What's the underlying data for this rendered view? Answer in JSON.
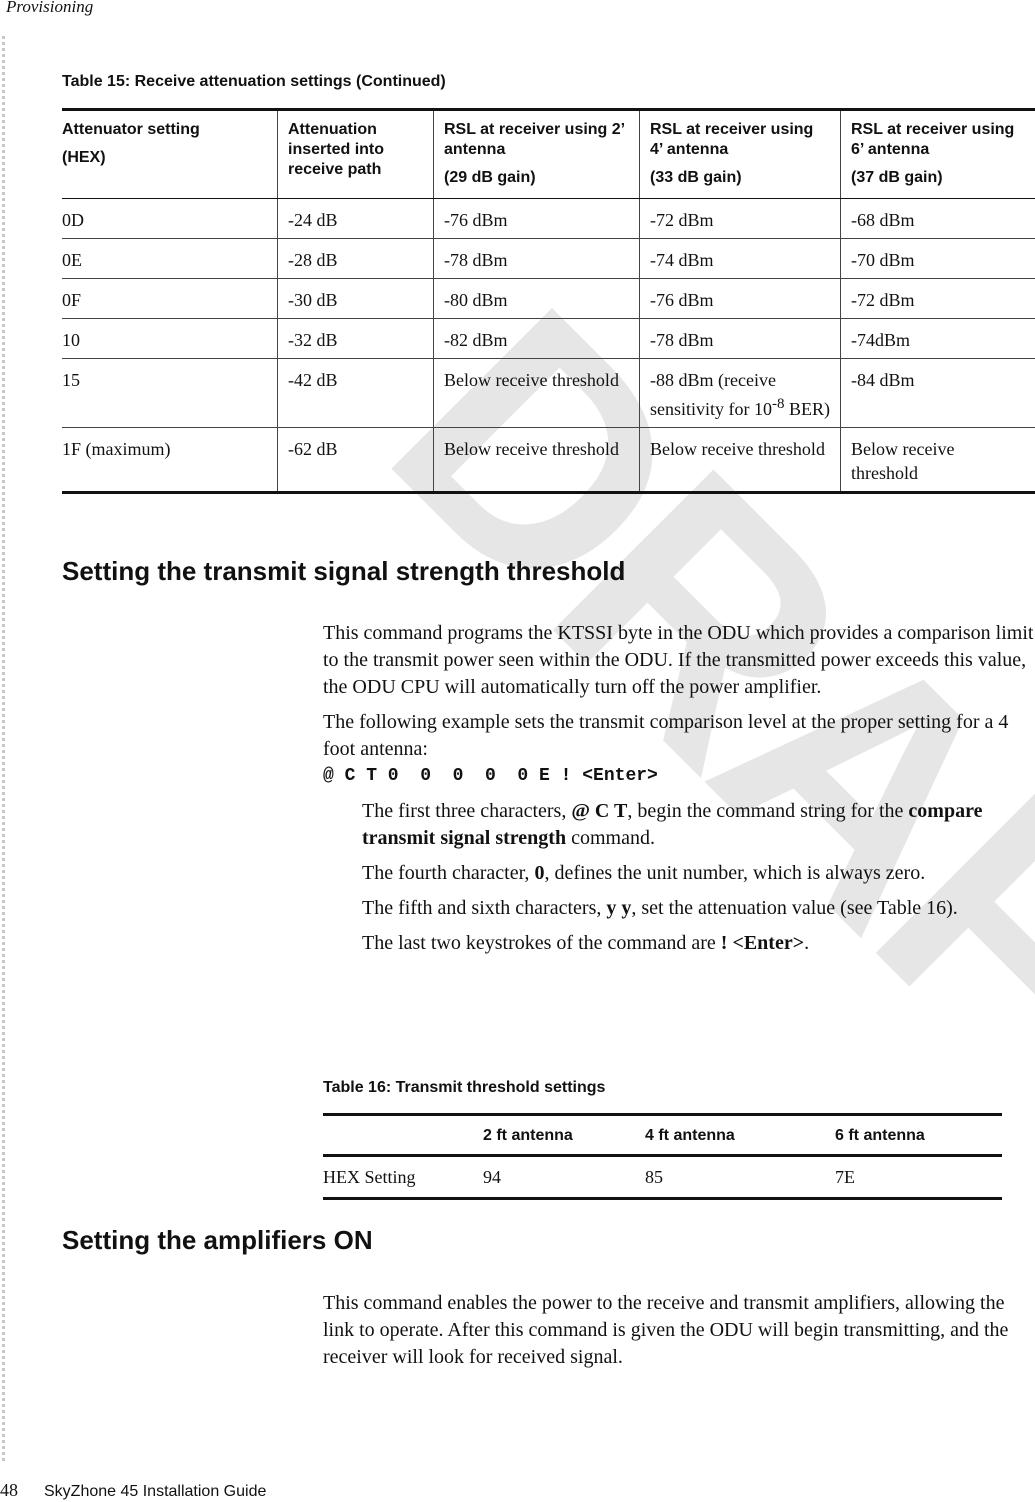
{
  "header": {
    "section": "Provisioning"
  },
  "watermark": "DRAFT",
  "table15": {
    "caption": "Table 15:  Receive attenuation settings (Continued)",
    "headers": [
      [
        "Attenuator setting",
        "(HEX)"
      ],
      [
        "Attenuation inserted into receive path"
      ],
      [
        "RSL at receiver using 2’ antenna",
        "(29 dB gain)"
      ],
      [
        "RSL at receiver using 4’ antenna",
        "(33 dB gain)"
      ],
      [
        "RSL at receiver using 6’ antenna",
        "(37 dB gain)"
      ]
    ],
    "rows": [
      [
        "0D",
        "-24 dB",
        "-76 dBm",
        "-72 dBm",
        "-68 dBm"
      ],
      [
        "0E",
        "-28 dB",
        "-78 dBm",
        "-74 dBm",
        "-70 dBm"
      ],
      [
        "0F",
        "-30 dB",
        "-80 dBm",
        "-76 dBm",
        "-72 dBm"
      ],
      [
        "10",
        "-32 dB",
        "-82 dBm",
        "-78 dBm",
        "-74dBm"
      ],
      [
        "15",
        "-42 dB",
        "Below receive threshold",
        "-88 dBm (receive sensitivity for 10",
        "-84 dBm"
      ],
      [
        "1F (maximum)",
        "-62 dB",
        "Below receive threshold",
        "Below receive threshold",
        "Below receive threshold"
      ]
    ],
    "row15_sup": "-8",
    "row15_tail": " BER)"
  },
  "section1": {
    "title": "Setting the transmit signal strength threshold",
    "p1": "This command programs the KTSSI byte in the ODU which provides a comparison limit to the transmit power seen within the ODU. If the transmitted power exceeds this value, the ODU CPU will automatically turn off the power amplifier.",
    "p2": "The following example sets the transmit comparison level at the proper setting for a 4 foot antenna:",
    "command": "@ C T 0  0  0  0  0 E ! <Enter>",
    "b1": [
      "The first three characters, ",
      "@ C T",
      ", begin the command string for the ",
      "compare transmit signal strength",
      " command."
    ],
    "b2": [
      "The fourth character, ",
      "0",
      ", defines the unit number, which is always zero."
    ],
    "b3": [
      "The fifth and sixth characters, ",
      "y y",
      ", set the attenuation value (see Table 16)."
    ],
    "b4": [
      "The last two keystrokes of the command are ",
      "! <Enter>",
      "."
    ]
  },
  "table16": {
    "caption": "Table 16:  Transmit threshold settings",
    "headers": [
      "",
      "2 ft antenna",
      "4 ft antenna",
      "6 ft antenna"
    ],
    "rows": [
      [
        "HEX Setting",
        "94",
        "85",
        "7E"
      ]
    ]
  },
  "section2": {
    "title": "Setting the amplifiers ON",
    "p1": "This command enables the power to the receive and transmit amplifiers, allowing the link to operate. After this command is given the ODU will begin transmitting, and the receiver will look for received signal."
  },
  "footer": {
    "page": "48",
    "title": "SkyZhone 45 Installation Guide"
  }
}
